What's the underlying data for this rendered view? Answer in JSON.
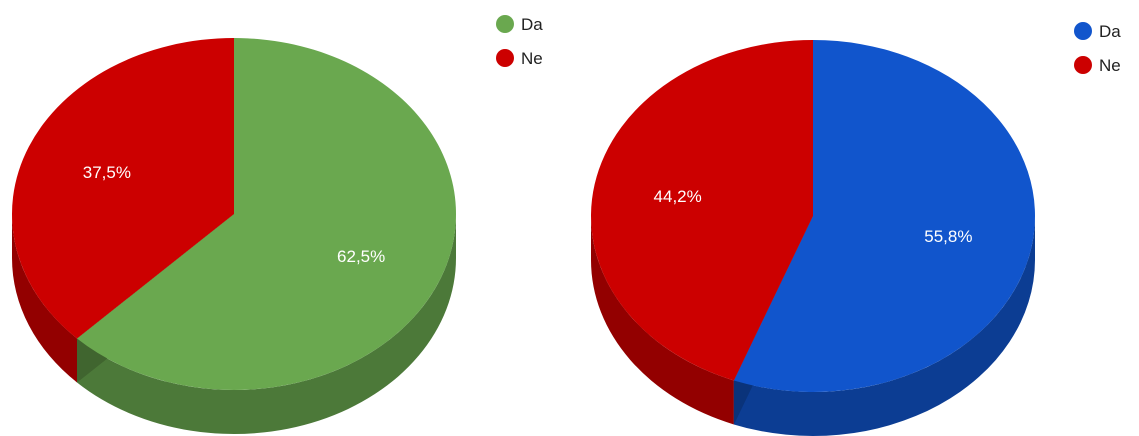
{
  "chart_data": [
    {
      "type": "pie",
      "style": "3d",
      "categories": [
        "Da",
        "Ne"
      ],
      "values": [
        62.5,
        37.5
      ],
      "labels": [
        "62,5%",
        "37,5%"
      ],
      "colors": [
        "#6aa84f",
        "#cc0000"
      ],
      "legend": {
        "position": "top-right",
        "entries": [
          "Da",
          "Ne"
        ]
      }
    },
    {
      "type": "pie",
      "style": "3d",
      "categories": [
        "Da",
        "Ne"
      ],
      "values": [
        55.8,
        44.2
      ],
      "labels": [
        "55,8%",
        "44,2%"
      ],
      "colors": [
        "#1155cc",
        "#cc0000"
      ],
      "legend": {
        "position": "top-right",
        "entries": [
          "Da",
          "Ne"
        ]
      }
    }
  ]
}
